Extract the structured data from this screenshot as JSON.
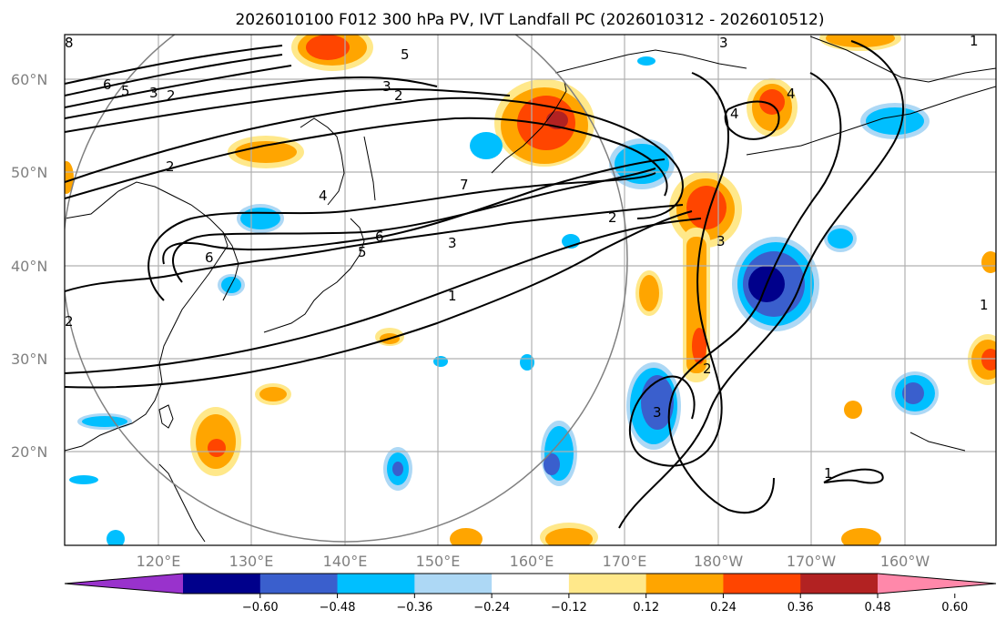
{
  "title": "2026010100 F012 300 hPa PV, IVT Landfall PC (2026010312 - 2026010512)",
  "map": {
    "lat_labels": [
      "60°N",
      "50°N",
      "40°N",
      "30°N",
      "20°N"
    ],
    "lon_labels": [
      "120°E",
      "130°E",
      "140°E",
      "150°E",
      "160°E",
      "170°E",
      "180°W",
      "170°W",
      "160°W"
    ]
  },
  "colorbar": {
    "ticks": [
      "−0.60",
      "−0.48",
      "−0.36",
      "−0.24",
      "−0.12",
      "0.12",
      "0.24",
      "0.36",
      "0.48",
      "0.60"
    ],
    "colors": [
      "#9932cc",
      "#00008b",
      "#3a5fcd",
      "#00bfff",
      "#add8f5",
      "#ffffff",
      "#ffe88a",
      "#ffa500",
      "#ff4500",
      "#b22222",
      "#ff88aa"
    ]
  },
  "contour_labels": [
    "1",
    "2",
    "3",
    "4",
    "5",
    "6",
    "7",
    "8"
  ]
}
